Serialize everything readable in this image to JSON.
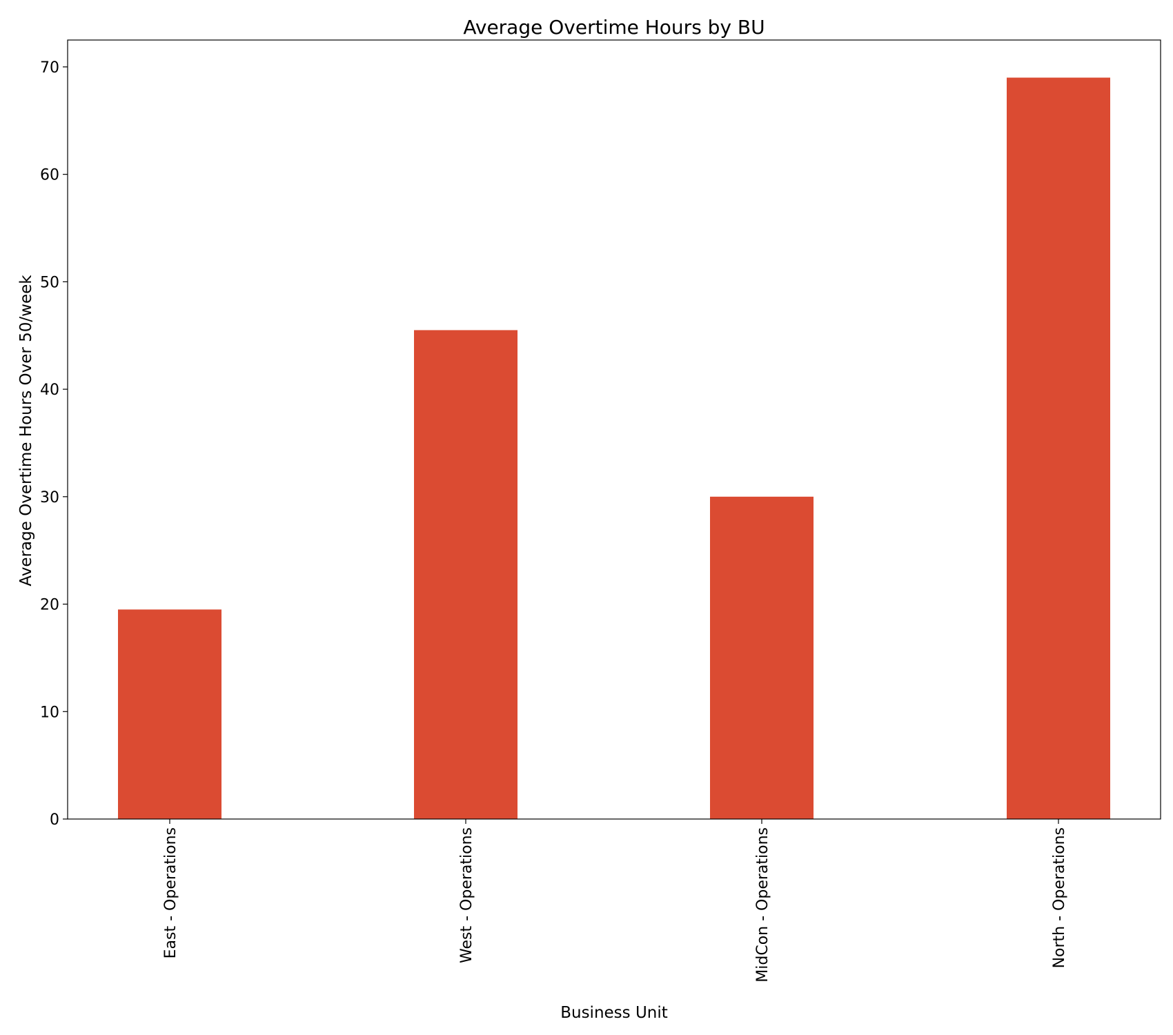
{
  "chart_data": {
    "type": "bar",
    "title": "Average Overtime Hours by BU",
    "xlabel": "Business Unit",
    "ylabel": "Average Overtime Hours Over 50/week",
    "categories": [
      "East - Operations",
      "West - Operations",
      "MidCon - Operations",
      "North - Operations"
    ],
    "values": [
      19.5,
      45.5,
      30.0,
      69.0
    ],
    "ylim": [
      0,
      72.5
    ],
    "yticks": [
      "0",
      "10",
      "20",
      "30",
      "40",
      "50",
      "60",
      "70"
    ],
    "bar_color": "#db4b32",
    "grid": false,
    "legend": "none"
  }
}
